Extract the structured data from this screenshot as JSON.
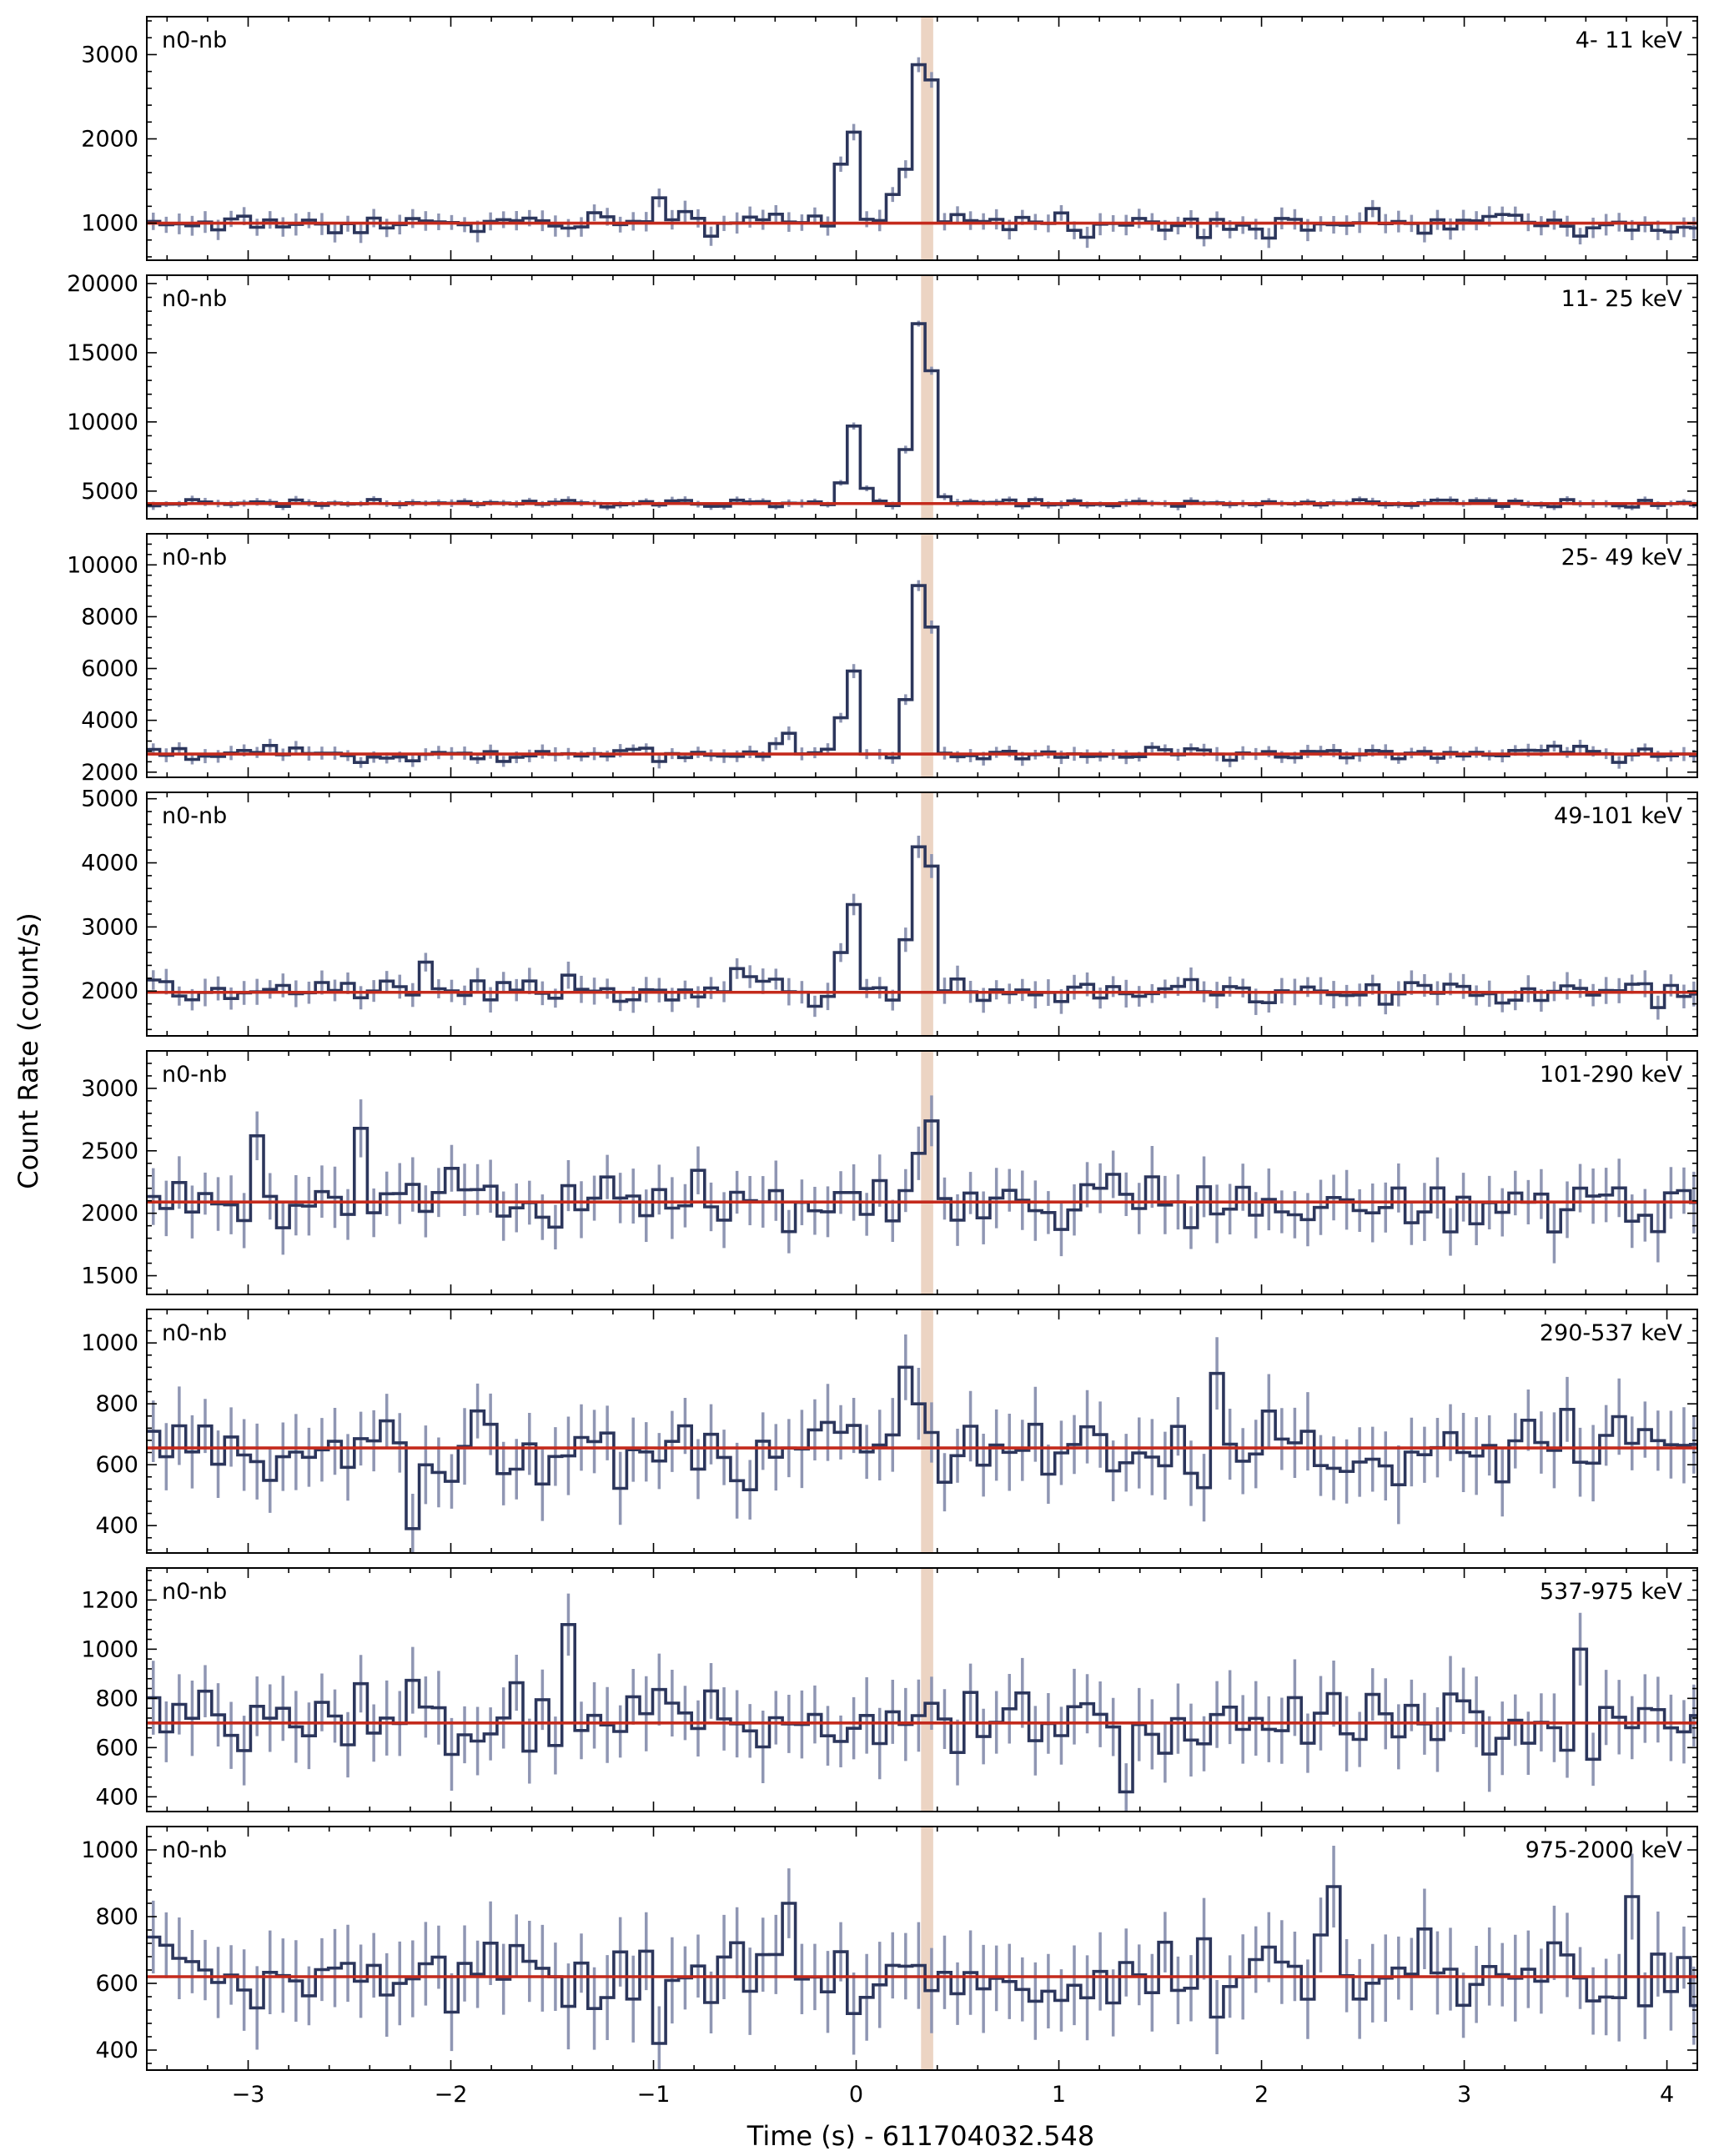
{
  "figure": {
    "xlabel": "Time (s) - 611704032.548",
    "ylabel": "Count Rate (count/s)"
  },
  "colors": {
    "lightcurve": "#2c365c",
    "errorbar": "#8f96b3",
    "background_line": "#c42a1c",
    "highlight_band": "#e9cdb8",
    "frame": "#000000"
  },
  "chart_data": [
    {
      "type": "step",
      "detector": "n0-nb",
      "energy_range": "4- 11 keV",
      "xlim": [
        -3.5,
        4.15
      ],
      "ylim": [
        560,
        3450
      ],
      "yticks": [
        1000,
        2000,
        3000
      ],
      "xticks": [
        -3,
        -2,
        -1,
        0,
        1,
        2,
        3,
        4
      ],
      "background": 1000,
      "highlight": [
        0.32,
        0.38
      ],
      "noise": 110,
      "peaks": [
        {
          "x": 0.0,
          "y": 2080
        },
        {
          "x": -0.05,
          "y": 1700
        },
        {
          "x": 0.32,
          "y": 2880
        },
        {
          "x": 0.38,
          "y": 2700
        },
        {
          "x": 0.26,
          "y": 1640
        },
        {
          "x": 0.2,
          "y": 1340
        },
        {
          "x": -1.0,
          "y": 1300
        }
      ]
    },
    {
      "type": "step",
      "detector": "n0-nb",
      "energy_range": "11- 25 keV",
      "xlim": [
        -3.5,
        4.15
      ],
      "ylim": [
        3000,
        20600
      ],
      "yticks": [
        5000,
        10000,
        15000,
        20000
      ],
      "xticks": [
        -3,
        -2,
        -1,
        0,
        1,
        2,
        3,
        4
      ],
      "background": 4100,
      "highlight": [
        0.32,
        0.38
      ],
      "noise": 250,
      "peaks": [
        {
          "x": -0.05,
          "y": 5600
        },
        {
          "x": 0.0,
          "y": 9700
        },
        {
          "x": 0.05,
          "y": 5200
        },
        {
          "x": 0.26,
          "y": 8000
        },
        {
          "x": 0.32,
          "y": 17100
        },
        {
          "x": 0.38,
          "y": 13700
        },
        {
          "x": 0.44,
          "y": 4600
        }
      ]
    },
    {
      "type": "step",
      "detector": "n0-nb",
      "energy_range": "25- 49 keV",
      "xlim": [
        -3.5,
        4.15
      ],
      "ylim": [
        1800,
        11200
      ],
      "yticks": [
        2000,
        4000,
        6000,
        8000,
        10000
      ],
      "xticks": [
        -3,
        -2,
        -1,
        0,
        1,
        2,
        3,
        4
      ],
      "background": 2700,
      "highlight": [
        0.32,
        0.38
      ],
      "noise": 230,
      "peaks": [
        {
          "x": -0.3,
          "y": 3500
        },
        {
          "x": -0.37,
          "y": 3100
        },
        {
          "x": -0.05,
          "y": 4100
        },
        {
          "x": 0.0,
          "y": 5900
        },
        {
          "x": 0.26,
          "y": 4800
        },
        {
          "x": 0.32,
          "y": 9200
        },
        {
          "x": 0.38,
          "y": 7600
        }
      ]
    },
    {
      "type": "step",
      "detector": "n0-nb",
      "energy_range": "49-101 keV",
      "xlim": [
        -3.5,
        4.15
      ],
      "ylim": [
        1300,
        5100
      ],
      "yticks": [
        2000,
        3000,
        4000,
        5000
      ],
      "xticks": [
        -3,
        -2,
        -1,
        0,
        1,
        2,
        3,
        4
      ],
      "background": 1980,
      "highlight": [
        0.32,
        0.38
      ],
      "noise": 180,
      "peaks": [
        {
          "x": -0.05,
          "y": 2600
        },
        {
          "x": 0.0,
          "y": 3350
        },
        {
          "x": 0.26,
          "y": 2800
        },
        {
          "x": 0.32,
          "y": 4250
        },
        {
          "x": 0.38,
          "y": 3950
        },
        {
          "x": -2.1,
          "y": 2450
        },
        {
          "x": -0.6,
          "y": 2350
        }
      ]
    },
    {
      "type": "step",
      "detector": "n0-nb",
      "energy_range": "101-290 keV",
      "xlim": [
        -3.5,
        4.15
      ],
      "ylim": [
        1350,
        3300
      ],
      "yticks": [
        1500,
        2000,
        2500,
        3000
      ],
      "xticks": [
        -3,
        -2,
        -1,
        0,
        1,
        2,
        3,
        4
      ],
      "background": 2090,
      "highlight": [
        0.32,
        0.38
      ],
      "noise": 210,
      "peaks": [
        {
          "x": -2.95,
          "y": 2620
        },
        {
          "x": -2.45,
          "y": 2680
        },
        {
          "x": 0.38,
          "y": 2740
        },
        {
          "x": 0.32,
          "y": 2480
        }
      ]
    },
    {
      "type": "step",
      "detector": "n0-nb",
      "energy_range": "290-537 keV",
      "xlim": [
        -3.5,
        4.15
      ],
      "ylim": [
        310,
        1110
      ],
      "yticks": [
        400,
        600,
        800,
        1000
      ],
      "xticks": [
        -3,
        -2,
        -1,
        0,
        1,
        2,
        3,
        4
      ],
      "background": 655,
      "highlight": [
        0.32,
        0.38
      ],
      "noise": 110,
      "peaks": [
        {
          "x": 0.26,
          "y": 920
        },
        {
          "x": 0.32,
          "y": 800
        },
        {
          "x": -2.2,
          "y": 390
        },
        {
          "x": 1.75,
          "y": 900
        }
      ]
    },
    {
      "type": "step",
      "detector": "n0-nb",
      "energy_range": "537-975 keV",
      "xlim": [
        -3.5,
        4.15
      ],
      "ylim": [
        340,
        1330
      ],
      "yticks": [
        400,
        600,
        800,
        1000,
        1200
      ],
      "xticks": [
        -3,
        -2,
        -1,
        0,
        1,
        2,
        3,
        4
      ],
      "background": 700,
      "highlight": [
        0.32,
        0.38
      ],
      "noise": 130,
      "peaks": [
        {
          "x": -1.45,
          "y": 1100
        },
        {
          "x": 3.6,
          "y": 1000
        },
        {
          "x": 1.35,
          "y": 420
        }
      ]
    },
    {
      "type": "step",
      "detector": "n0-nb",
      "energy_range": "975-2000 keV",
      "xlim": [
        -3.5,
        4.15
      ],
      "ylim": [
        340,
        1070
      ],
      "yticks": [
        400,
        600,
        800,
        1000
      ],
      "xticks": [
        -3,
        -2,
        -1,
        0,
        1,
        2,
        3,
        4
      ],
      "background": 620,
      "highlight": [
        0.32,
        0.38
      ],
      "noise": 110,
      "peaks": [
        {
          "x": -0.95,
          "y": 820
        },
        {
          "x": -0.3,
          "y": 840
        },
        {
          "x": 2.35,
          "y": 890
        },
        {
          "x": 3.85,
          "y": 860
        },
        {
          "x": -1.0,
          "y": 420
        }
      ]
    }
  ]
}
